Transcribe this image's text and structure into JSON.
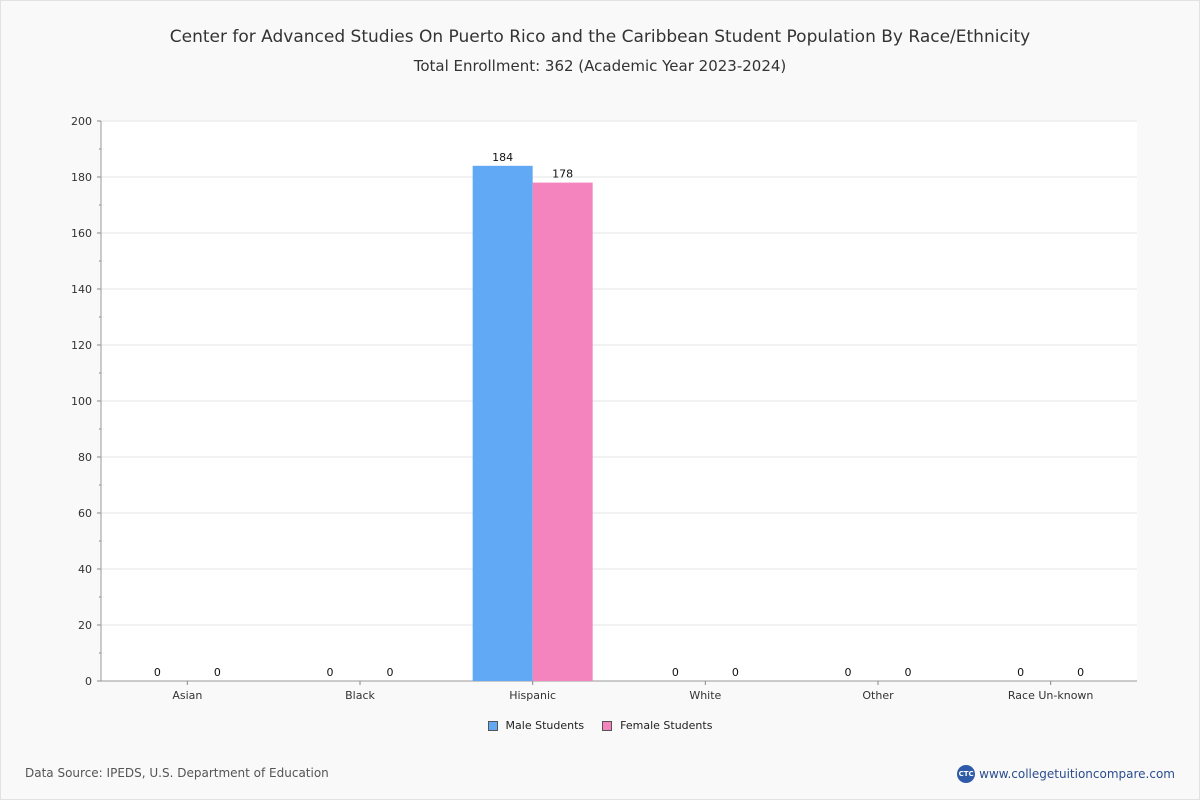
{
  "header": {
    "title": "Center for Advanced Studies On Puerto Rico and the Caribbean Student Population By Race/Ethnicity",
    "subtitle": "Total Enrollment: 362 (Academic Year 2023-2024)"
  },
  "chart_data": {
    "type": "bar",
    "categories": [
      "Asian",
      "Black",
      "Hispanic",
      "White",
      "Other",
      "Race Un-known"
    ],
    "series": [
      {
        "name": "Male Students",
        "values": [
          0,
          0,
          184,
          0,
          0,
          0
        ],
        "color": "#61a9f5"
      },
      {
        "name": "Female Students",
        "values": [
          0,
          0,
          178,
          0,
          0,
          0
        ],
        "color": "#f484bd"
      }
    ],
    "ylim": [
      0,
      200
    ],
    "yticks": [
      0,
      20,
      40,
      60,
      80,
      100,
      120,
      140,
      160,
      180,
      200
    ],
    "grid": true,
    "legend_position": "bottom-center"
  },
  "footer": {
    "source": "Data Source: IPEDS, U.S. Department of Education",
    "brand_logo": "CTC",
    "brand_url": "www.collegetuitioncompare.com"
  }
}
